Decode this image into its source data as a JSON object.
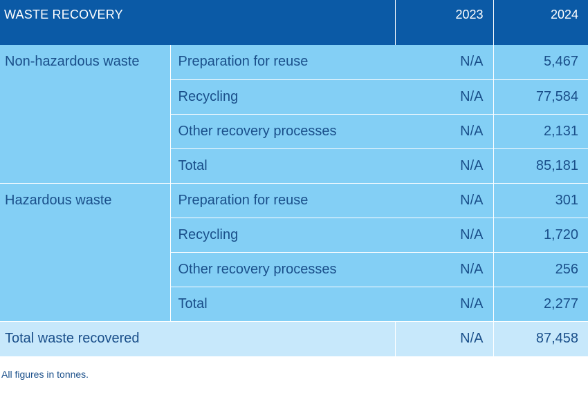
{
  "table": {
    "title": "WASTE RECOVERY",
    "years": [
      "2023",
      "2024"
    ],
    "groups": [
      {
        "category": "Non-hazardous waste",
        "rows": [
          {
            "label": "Preparation for reuse",
            "y2023": "N/A",
            "y2024": "5,467"
          },
          {
            "label": "Recycling",
            "y2023": "N/A",
            "y2024": "77,584"
          },
          {
            "label": "Other recovery processes",
            "y2023": "N/A",
            "y2024": "2,131"
          },
          {
            "label": "Total",
            "y2023": "N/A",
            "y2024": "85,181"
          }
        ]
      },
      {
        "category": "Hazardous waste",
        "rows": [
          {
            "label": "Preparation for reuse",
            "y2023": "N/A",
            "y2024": "301"
          },
          {
            "label": "Recycling",
            "y2023": "N/A",
            "y2024": "1,720"
          },
          {
            "label": "Other recovery processes",
            "y2023": "N/A",
            "y2024": "256"
          },
          {
            "label": "Total",
            "y2023": "N/A",
            "y2024": "2,277"
          }
        ]
      }
    ],
    "grand_total": {
      "label": "Total waste recovered",
      "y2023": "N/A",
      "y2024": "87,458"
    }
  },
  "footnote": "All figures in tonnes.",
  "colors": {
    "header_bg": "#0b5aa6",
    "row_bg": "#83cff5",
    "total_row_bg": "#c7e8fb",
    "text": "#1a4f8a"
  }
}
